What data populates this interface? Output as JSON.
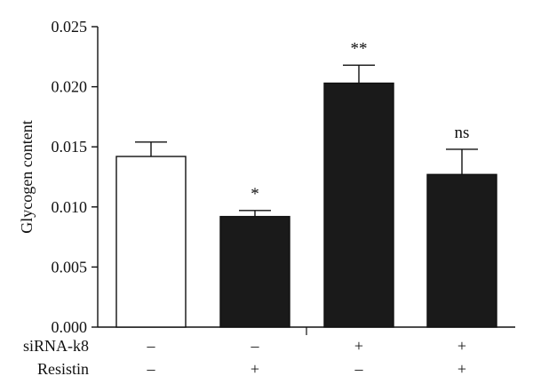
{
  "chart_data": {
    "type": "bar",
    "ylabel": "Glycogen content",
    "ylim": [
      0,
      0.025
    ],
    "yticks": [
      "0.000",
      "0.005",
      "0.010",
      "0.015",
      "0.020",
      "0.025"
    ],
    "grid": false,
    "bars": [
      {
        "value": 0.0142,
        "error": 0.0012,
        "fill": "#ffffff",
        "significance": "",
        "sirna": "–",
        "resistin": "–"
      },
      {
        "value": 0.0092,
        "error": 0.0005,
        "fill": "#1a1a1a",
        "significance": "*",
        "sirna": "–",
        "resistin": "+"
      },
      {
        "value": 0.0203,
        "error": 0.0015,
        "fill": "#1a1a1a",
        "significance": "**",
        "sirna": "+",
        "resistin": "–"
      },
      {
        "value": 0.0127,
        "error": 0.0021,
        "fill": "#1a1a1a",
        "significance": "ns",
        "sirna": "+",
        "resistin": "+"
      }
    ],
    "row_labels": {
      "sirna": "siRNA-k8",
      "resistin": "Resistin"
    }
  }
}
